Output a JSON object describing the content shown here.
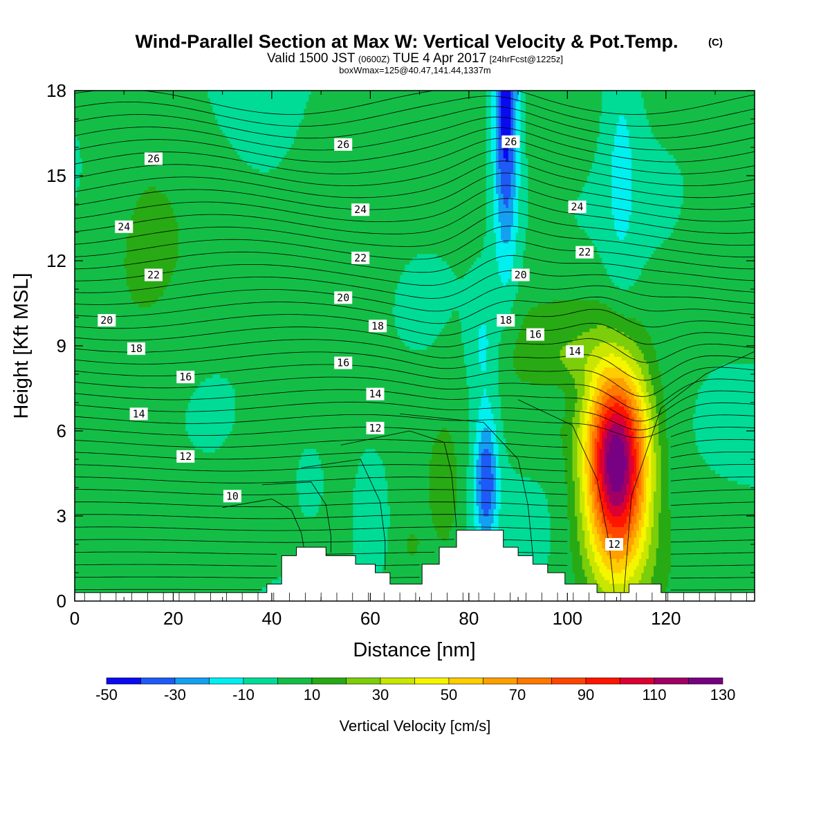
{
  "title": "Wind-Parallel Section at Max W: Vertical Velocity & Pot.Temp.",
  "copyright": "(C)",
  "subtitle_a": "Valid 1500 JST",
  "subtitle_b": "(0600Z)",
  "subtitle_c": "TUE 4 Apr 2017",
  "subtitle_d": "[24hrFcst@1225z]",
  "subtitle_e": "boxWmax=125@40.47,141.44,1337m",
  "chart_data": {
    "type": "heatmap",
    "xlabel": "Distance [nm]",
    "ylabel": "Height [Kft MSL]",
    "xlim": [
      0,
      138
    ],
    "ylim": [
      0,
      18
    ],
    "x_ticks": [
      0,
      20,
      40,
      60,
      80,
      100,
      120
    ],
    "y_ticks": [
      0,
      3,
      6,
      9,
      12,
      15,
      18
    ],
    "grid": false,
    "colorbar": {
      "label": "Vertical Velocity [cm/s]",
      "levels": [
        -50,
        -40,
        -30,
        -20,
        -10,
        0,
        10,
        20,
        30,
        40,
        50,
        60,
        70,
        80,
        90,
        100,
        110,
        120,
        130
      ],
      "tick_labels": [
        "-50",
        "-30",
        "-10",
        "10",
        "30",
        "50",
        "70",
        "90",
        "110",
        "130"
      ],
      "colors": [
        "#0a0af0",
        "#1e5af5",
        "#14a0f0",
        "#00f0f0",
        "#00dc96",
        "#14be46",
        "#28aa14",
        "#7ccd0a",
        "#c8e600",
        "#f5f500",
        "#ffcd00",
        "#ffa000",
        "#ff7800",
        "#ff4600",
        "#ff1400",
        "#dc0032",
        "#a00064",
        "#780082"
      ]
    },
    "contour_labels": [
      {
        "text": "26",
        "x": 16,
        "y": 15.6
      },
      {
        "text": "26",
        "x": 54.5,
        "y": 16.1
      },
      {
        "text": "26",
        "x": 88.5,
        "y": 16.2
      },
      {
        "text": "24",
        "x": 10,
        "y": 13.2
      },
      {
        "text": "24",
        "x": 58,
        "y": 13.8
      },
      {
        "text": "24",
        "x": 102,
        "y": 13.9
      },
      {
        "text": "22",
        "x": 16,
        "y": 11.5
      },
      {
        "text": "22",
        "x": 58,
        "y": 12.1
      },
      {
        "text": "22",
        "x": 103.5,
        "y": 12.3
      },
      {
        "text": "20",
        "x": 6.5,
        "y": 9.9
      },
      {
        "text": "20",
        "x": 54.5,
        "y": 10.7
      },
      {
        "text": "20",
        "x": 90.5,
        "y": 11.5
      },
      {
        "text": "18",
        "x": 12.5,
        "y": 8.9
      },
      {
        "text": "18",
        "x": 61.5,
        "y": 9.7
      },
      {
        "text": "18",
        "x": 87.5,
        "y": 9.9
      },
      {
        "text": "16",
        "x": 22.5,
        "y": 7.9
      },
      {
        "text": "16",
        "x": 54.5,
        "y": 8.4
      },
      {
        "text": "16",
        "x": 93.5,
        "y": 9.4
      },
      {
        "text": "14",
        "x": 13,
        "y": 6.6
      },
      {
        "text": "14",
        "x": 61,
        "y": 7.3
      },
      {
        "text": "14",
        "x": 101.5,
        "y": 8.8
      },
      {
        "text": "12",
        "x": 22.5,
        "y": 5.1
      },
      {
        "text": "12",
        "x": 61,
        "y": 6.1
      },
      {
        "text": "12",
        "x": 109.5,
        "y": 2.0
      },
      {
        "text": "10",
        "x": 32,
        "y": 3.7
      }
    ],
    "theta_contour_count": 41,
    "terrain_kft": [
      [
        0,
        0.3
      ],
      [
        39,
        0.3
      ],
      [
        39,
        0.6
      ],
      [
        42,
        0.6
      ],
      [
        42,
        1.6
      ],
      [
        45,
        1.6
      ],
      [
        45,
        1.9
      ],
      [
        51,
        1.9
      ],
      [
        51,
        1.6
      ],
      [
        57,
        1.6
      ],
      [
        57,
        1.3
      ],
      [
        61,
        1.3
      ],
      [
        61,
        1.0
      ],
      [
        64,
        1.0
      ],
      [
        64,
        0.6
      ],
      [
        70.5,
        0.6
      ],
      [
        70.5,
        1.3
      ],
      [
        74,
        1.3
      ],
      [
        74,
        1.9
      ],
      [
        77.5,
        1.9
      ],
      [
        77.5,
        2.5
      ],
      [
        87,
        2.5
      ],
      [
        87,
        1.9
      ],
      [
        90,
        1.9
      ],
      [
        90,
        1.6
      ],
      [
        93,
        1.6
      ],
      [
        93,
        1.3
      ],
      [
        96,
        1.3
      ],
      [
        96,
        1.0
      ],
      [
        99.5,
        1.0
      ],
      [
        99.5,
        0.6
      ],
      [
        106,
        0.6
      ],
      [
        106,
        0.3
      ],
      [
        112.5,
        0.3
      ],
      [
        112.5,
        0.6
      ],
      [
        119,
        0.6
      ],
      [
        119,
        0.3
      ],
      [
        138,
        0.3
      ]
    ],
    "w_features": [
      {
        "x": 110,
        "y": 5.0,
        "peak_cms": 125
      },
      {
        "x": 87.5,
        "y": 17.5,
        "peak_cms": -50
      },
      {
        "x": 83.5,
        "y": 4.3,
        "peak_cms": -40
      }
    ]
  }
}
